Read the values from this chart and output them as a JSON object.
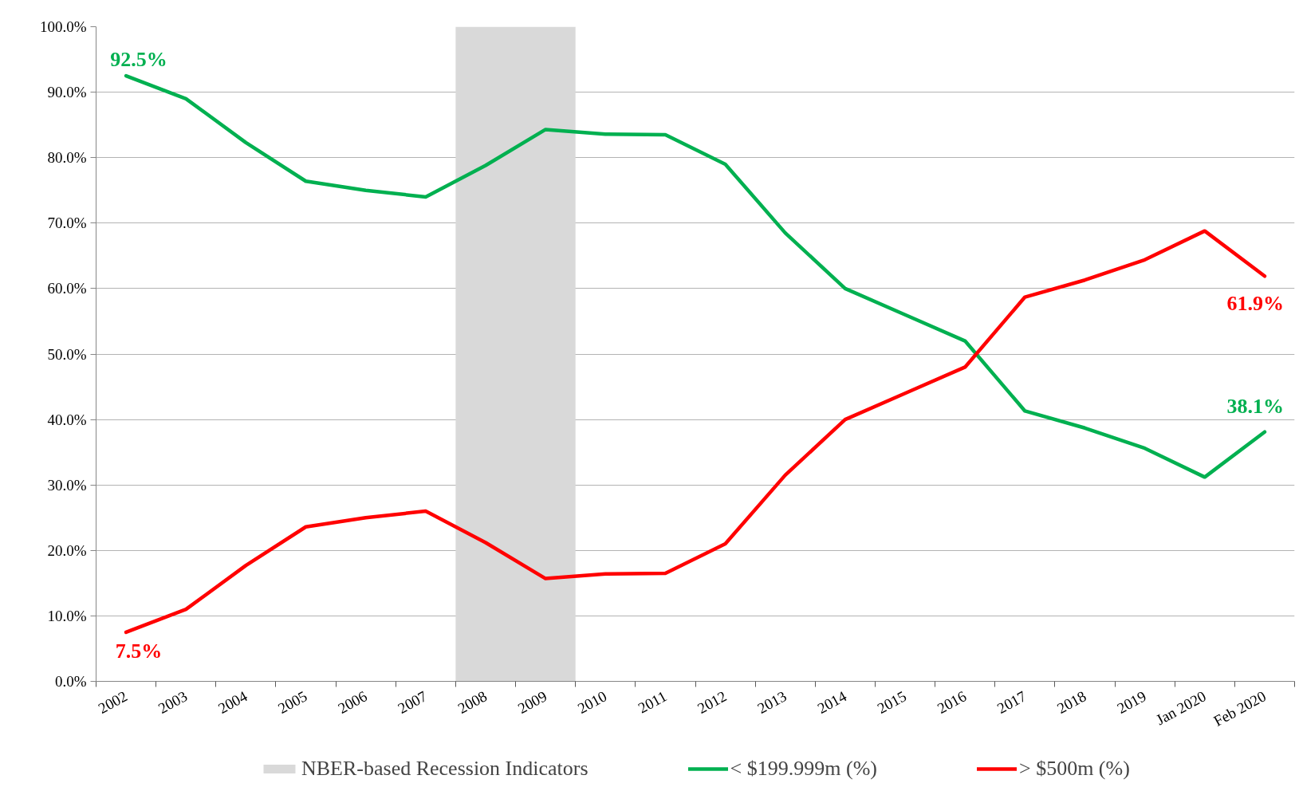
{
  "chart_data": {
    "type": "line",
    "categories": [
      "2002",
      "2003",
      "2004",
      "2005",
      "2006",
      "2007",
      "2008",
      "2009",
      "2010",
      "2011",
      "2012",
      "2013",
      "2014",
      "2015",
      "2016",
      "2017",
      "2018",
      "2019",
      "Jan 2020",
      "Feb 2020"
    ],
    "series": [
      {
        "name": "< $199.999m (%)",
        "color": "#00b050",
        "values": [
          92.5,
          89.0,
          82.3,
          76.4,
          75.0,
          74.0,
          78.8,
          84.3,
          83.6,
          83.5,
          79.0,
          68.5,
          60.0,
          56.0,
          52.0,
          41.3,
          38.7,
          35.6,
          31.2,
          38.1
        ],
        "value_labels": [
          "92.5%",
          null,
          null,
          null,
          null,
          null,
          null,
          null,
          null,
          null,
          null,
          null,
          null,
          null,
          null,
          null,
          null,
          null,
          null,
          "38.1%"
        ]
      },
      {
        "name": "> $500m (%)",
        "color": "#ff0000",
        "values": [
          7.5,
          11.0,
          17.7,
          23.6,
          25.0,
          26.0,
          21.2,
          15.7,
          16.4,
          16.5,
          21.0,
          31.5,
          40.0,
          44.0,
          48.0,
          58.7,
          61.3,
          64.4,
          68.8,
          61.9
        ],
        "value_labels": [
          "7.5%",
          null,
          null,
          null,
          null,
          null,
          null,
          null,
          null,
          null,
          null,
          null,
          null,
          null,
          null,
          null,
          null,
          null,
          null,
          "61.9%"
        ]
      }
    ],
    "ylim": [
      0,
      100
    ],
    "yticks": [
      {
        "value": 0,
        "label": "0.0%"
      },
      {
        "value": 10,
        "label": "10.0%"
      },
      {
        "value": 20,
        "label": "20.0%"
      },
      {
        "value": 30,
        "label": "30.0%"
      },
      {
        "value": 40,
        "label": "40.0%"
      },
      {
        "value": 50,
        "label": "50.0%"
      },
      {
        "value": 60,
        "label": "60.0%"
      },
      {
        "value": 70,
        "label": "70.0%"
      },
      {
        "value": 80,
        "label": "80.0%"
      },
      {
        "value": 90,
        "label": "90.0%"
      },
      {
        "value": 100,
        "label": "100.0%"
      }
    ],
    "grid": "y",
    "legend": "bottom",
    "line_style": "solid",
    "bands": [
      {
        "axis": "x",
        "from": "2008",
        "to": "2009",
        "label": "NBER-based Recession Indicators",
        "color": "#d9d9d9"
      }
    ]
  }
}
